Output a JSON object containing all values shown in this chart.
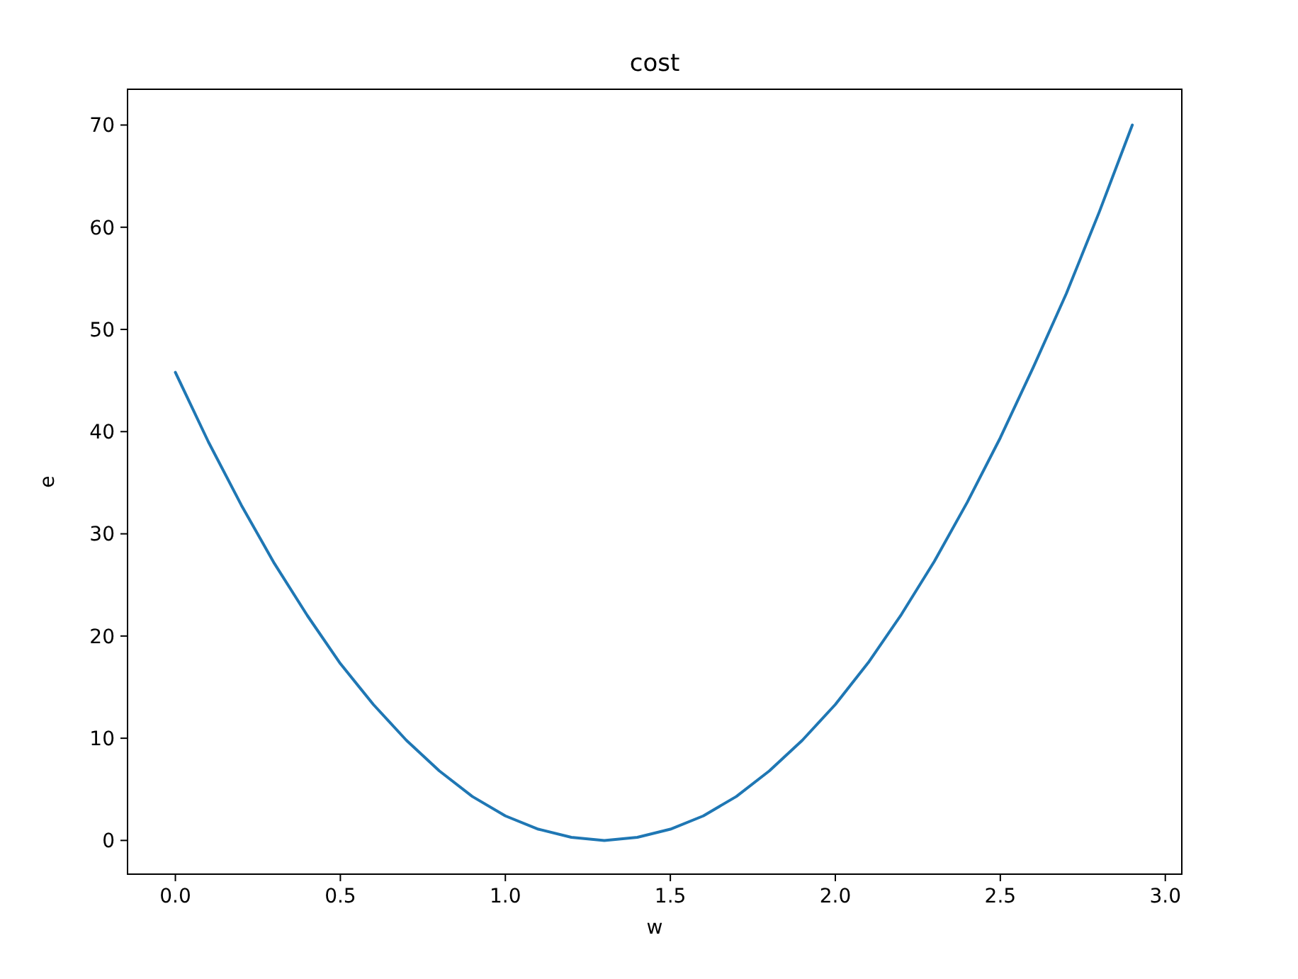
{
  "chart_data": {
    "type": "line",
    "title": "cost",
    "xlabel": "w",
    "ylabel": "e",
    "x": [
      0,
      0.1,
      0.2,
      0.3,
      0.4,
      0.5,
      0.6,
      0.7,
      0.8,
      0.9,
      1.0,
      1.1,
      1.2,
      1.3,
      1.4,
      1.5,
      1.6,
      1.7,
      1.8,
      1.9,
      2.0,
      2.1,
      2.2,
      2.3,
      2.4,
      2.5,
      2.6,
      2.7,
      2.8,
      2.9
    ],
    "series": [
      {
        "color": "#1f77b4",
        "values": [
          45.8,
          39.0,
          32.8,
          27.1,
          22.0,
          17.3,
          13.3,
          9.8,
          6.8,
          4.3,
          2.4,
          1.1,
          0.3,
          0,
          0.3,
          1.1,
          2.4,
          4.3,
          6.8,
          9.8,
          13.3,
          17.4,
          22.1,
          27.3,
          33.1,
          39.4,
          46.3,
          53.5,
          61.5,
          70.0
        ]
      }
    ],
    "xlim": [
      -0.145,
      3.05
    ],
    "ylim": [
      -3.3,
      73.5
    ],
    "xticks": [
      {
        "value": 0,
        "label": "0.0"
      },
      {
        "value": 0.5,
        "label": "0.5"
      },
      {
        "value": 1,
        "label": "1.0"
      },
      {
        "value": 1.5,
        "label": "1.5"
      },
      {
        "value": 2,
        "label": "2.0"
      },
      {
        "value": 2.5,
        "label": "2.5"
      },
      {
        "value": 3,
        "label": "3.0"
      }
    ],
    "yticks": [
      0,
      10,
      20,
      30,
      40,
      50,
      60,
      70
    ]
  }
}
